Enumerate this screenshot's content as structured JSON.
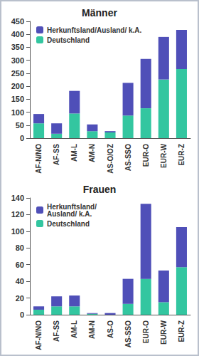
{
  "chart_data": [
    {
      "type": "bar",
      "title": "Männer",
      "categories": [
        "AF-N/NO",
        "AF-SS",
        "AM-L",
        "AM-N",
        "AS-O/OZ",
        "AS-SSO",
        "EUR-O",
        "EUR-W",
        "EUR-Z"
      ],
      "series": [
        {
          "name": "Deutschland",
          "color": "#33c6a0",
          "values": [
            57,
            17,
            95,
            27,
            22,
            87,
            115,
            226,
            266
          ]
        },
        {
          "name": "Herkunftsland/Ausland/ k.A.",
          "color": "#4f4fb8",
          "values": [
            36,
            40,
            87,
            26,
            5,
            126,
            190,
            164,
            151
          ]
        }
      ],
      "ylim": [
        0,
        450
      ],
      "yticks": [
        0,
        50,
        100,
        150,
        200,
        250,
        300,
        350,
        400,
        450
      ],
      "stacked": true,
      "grid": false,
      "legend": "upper left"
    },
    {
      "type": "bar",
      "title": "Frauen",
      "categories": [
        "AF-N/NO",
        "AF-SS",
        "AM-L",
        "AM-N",
        "AS-O",
        "AS-SSO",
        "EUR-O",
        "EUR-W",
        "EUR-Z"
      ],
      "series": [
        {
          "name": "Deutschland",
          "color": "#33c6a0",
          "values": [
            6,
            10,
            10,
            1,
            0,
            13,
            43,
            15,
            57
          ]
        },
        {
          "name": "Herkunftsland/\nAusland/ k.A.",
          "color": "#4f4fb8",
          "values": [
            4,
            12,
            13,
            1,
            2,
            30,
            90,
            38,
            48
          ]
        }
      ],
      "ylim": [
        0,
        140
      ],
      "yticks": [
        0,
        20,
        40,
        60,
        80,
        100,
        120,
        140
      ],
      "stacked": true,
      "grid": false,
      "legend": "upper left"
    }
  ]
}
